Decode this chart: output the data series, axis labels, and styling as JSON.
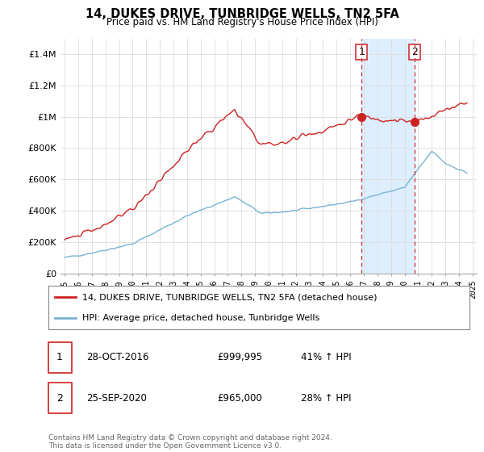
{
  "title": "14, DUKES DRIVE, TUNBRIDGE WELLS, TN2 5FA",
  "subtitle": "Price paid vs. HM Land Registry's House Price Index (HPI)",
  "legend_line1": "14, DUKES DRIVE, TUNBRIDGE WELLS, TN2 5FA (detached house)",
  "legend_line2": "HPI: Average price, detached house, Tunbridge Wells",
  "footnote": "Contains HM Land Registry data © Crown copyright and database right 2024.\nThis data is licensed under the Open Government Licence v3.0.",
  "transaction1_label": "1",
  "transaction1_date": "28-OCT-2016",
  "transaction1_price": "£999,995",
  "transaction1_hpi": "41% ↑ HPI",
  "transaction1_x": 2016.833,
  "transaction1_y": 999995,
  "transaction2_label": "2",
  "transaction2_date": "25-SEP-2020",
  "transaction2_price": "£965,000",
  "transaction2_hpi": "28% ↑ HPI",
  "transaction2_x": 2020.75,
  "transaction2_y": 965000,
  "hpi_color": "#7ab3d4",
  "price_color": "#cc2222",
  "marker_color": "#cc2222",
  "vline_color": "#cc3333",
  "shade_color": "#ddeeff",
  "ylim": [
    0,
    1500000
  ],
  "yticks": [
    0,
    200000,
    400000,
    600000,
    800000,
    1000000,
    1200000,
    1400000
  ],
  "xlim_start": 1994.7,
  "xlim_end": 2025.3,
  "hpi_seed": 42,
  "price_seed": 123,
  "scale_ratio": 2.0
}
